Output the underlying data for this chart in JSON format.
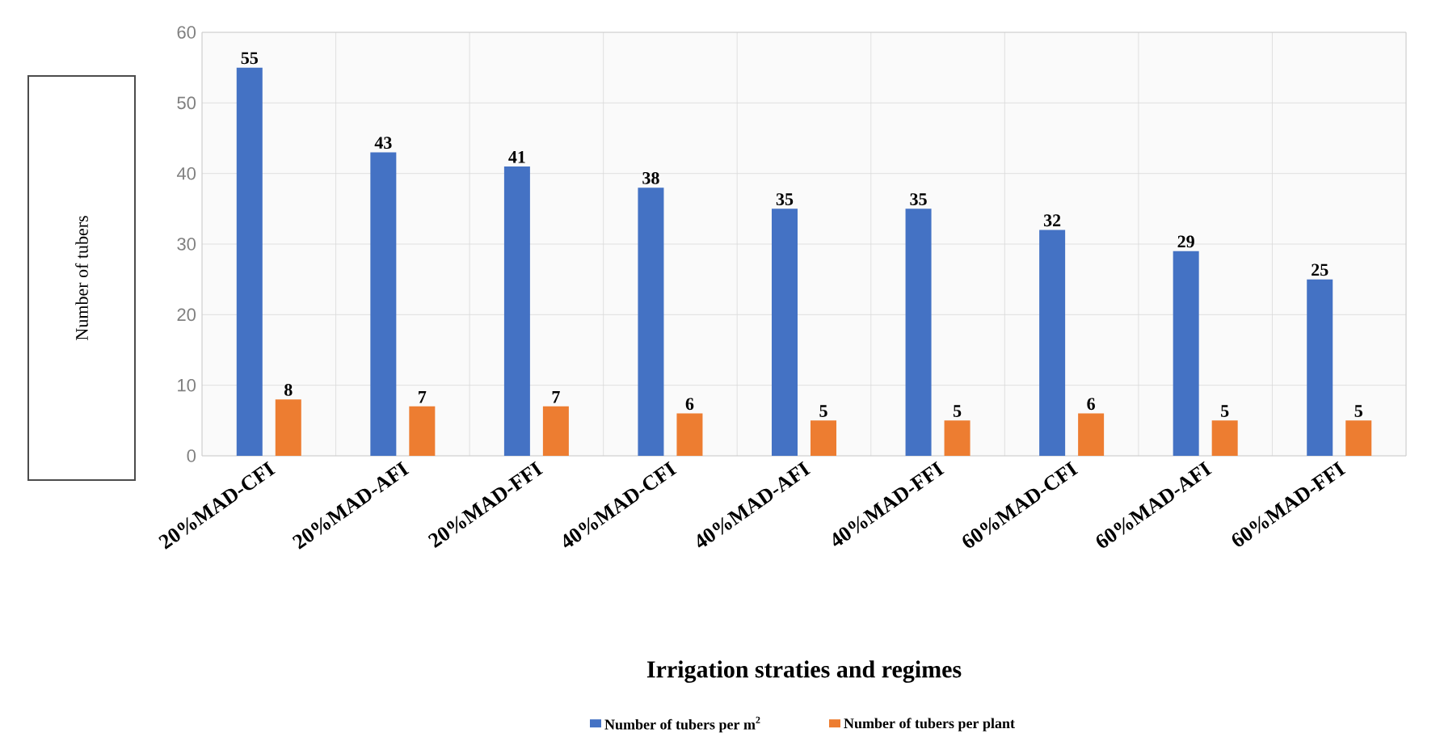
{
  "chart_data": {
    "type": "bar",
    "categories": [
      "20%MAD-CFI",
      "20%MAD-AFI",
      "20%MAD-FFI",
      "40%MAD-CFI",
      "40%MAD-AFI",
      "40%MAD-FFI",
      "60%MAD-CFI",
      "60%MAD-AFI",
      "60%MAD-FFI"
    ],
    "series": [
      {
        "name": "Number of tubers per m$^{2}$",
        "color": "#4472c4",
        "values": [
          55,
          43,
          41,
          38,
          35,
          35,
          32,
          29,
          25
        ]
      },
      {
        "name": "Number of tubers per plant",
        "color": "#ed7d31",
        "values": [
          8,
          7,
          7,
          6,
          5,
          5,
          6,
          5,
          5
        ]
      }
    ],
    "xlabel": "Irrigation straties and regimes",
    "ylabel": "Number of tubers",
    "ylim": [
      0,
      60
    ],
    "yticks": [
      0,
      10,
      20,
      30,
      40,
      50,
      60
    ],
    "grid": true,
    "legend": "bottom",
    "data_labels": true
  }
}
